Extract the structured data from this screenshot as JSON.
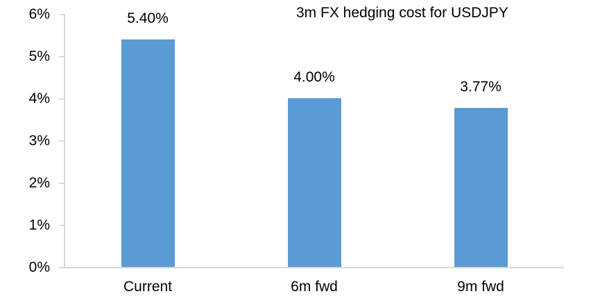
{
  "chart_data": {
    "type": "bar",
    "title": "3m FX hedging cost for USDJPY",
    "categories": [
      "Current",
      "6m fwd",
      "9m fwd"
    ],
    "values": [
      5.4,
      4.0,
      3.77
    ],
    "data_labels": [
      "5.40%",
      "4.00%",
      "3.77%"
    ],
    "xlabel": "",
    "ylabel": "",
    "ylim": [
      0,
      6
    ],
    "y_tick_step": 1,
    "y_tick_labels": [
      "0%",
      "1%",
      "2%",
      "3%",
      "4%",
      "5%",
      "6%"
    ],
    "grid": false,
    "legend": false,
    "colors": {
      "bar": "#5B9BD5",
      "axis": "#D9D9D9",
      "text": "#000000",
      "background": "#FFFFFF"
    }
  }
}
